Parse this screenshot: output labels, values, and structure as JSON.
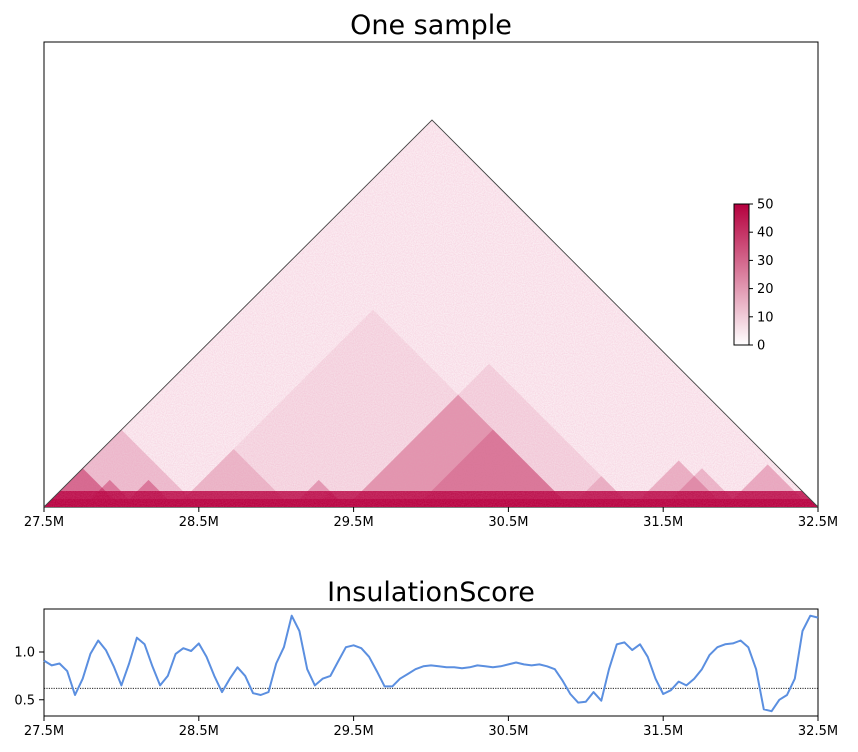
{
  "chart_data": [
    {
      "type": "heatmap",
      "title": "One sample",
      "x_tick_labels": [
        "27.5M",
        "28.5M",
        "29.5M",
        "30.5M",
        "31.5M",
        "32.5M"
      ],
      "x_ticks": [
        27.5,
        28.5,
        29.5,
        30.5,
        31.5,
        32.5
      ],
      "xlim": [
        27.5,
        32.5
      ],
      "colorbar": {
        "range": [
          0,
          50
        ],
        "ticks": [
          0,
          10,
          20,
          30,
          40,
          50
        ],
        "tick_labels": [
          "0",
          "10",
          "20",
          "30",
          "40",
          "50"
        ],
        "color_low": "#ffffff",
        "color_high": "#b5003e"
      },
      "tads": [
        {
          "start": 27.5,
          "end": 28.0,
          "intensity": 0.85
        },
        {
          "start": 27.75,
          "end": 28.1,
          "intensity": 0.7
        },
        {
          "start": 28.0,
          "end": 28.35,
          "intensity": 0.7
        },
        {
          "start": 27.5,
          "end": 28.5,
          "intensity": 0.35
        },
        {
          "start": 28.35,
          "end": 29.1,
          "intensity": 0.3
        },
        {
          "start": 29.1,
          "end": 29.45,
          "intensity": 0.55
        },
        {
          "start": 29.25,
          "end": 29.45,
          "intensity": 0.5
        },
        {
          "start": 29.45,
          "end": 30.9,
          "intensity": 0.45
        },
        {
          "start": 29.9,
          "end": 30.9,
          "intensity": 0.4
        },
        {
          "start": 30.9,
          "end": 31.3,
          "intensity": 0.3
        },
        {
          "start": 31.3,
          "end": 31.9,
          "intensity": 0.45
        },
        {
          "start": 31.5,
          "end": 32.0,
          "intensity": 0.4
        },
        {
          "start": 31.9,
          "end": 32.45,
          "intensity": 0.5
        },
        {
          "start": 29.45,
          "end": 31.3,
          "intensity": 0.18
        },
        {
          "start": 28.35,
          "end": 30.9,
          "intensity": 0.12
        }
      ]
    },
    {
      "type": "line",
      "title": "InsulationScore",
      "x_tick_labels": [
        "27.5M",
        "28.5M",
        "29.5M",
        "30.5M",
        "31.5M",
        "32.5M"
      ],
      "x_ticks": [
        27.5,
        28.5,
        29.5,
        30.5,
        31.5,
        32.5
      ],
      "y_ticks": [
        0.5,
        1.0
      ],
      "y_tick_labels": [
        "0.5",
        "1.0"
      ],
      "xlim": [
        27.5,
        32.5
      ],
      "ylim": [
        0.33,
        1.45
      ],
      "line_color": "#5b8fe0",
      "threshold": 0.62,
      "x": [
        27.5,
        27.55,
        27.6,
        27.65,
        27.7,
        27.75,
        27.8,
        27.85,
        27.9,
        27.95,
        28.0,
        28.05,
        28.1,
        28.15,
        28.2,
        28.25,
        28.3,
        28.35,
        28.4,
        28.45,
        28.5,
        28.55,
        28.6,
        28.65,
        28.7,
        28.75,
        28.8,
        28.85,
        28.9,
        28.95,
        29.0,
        29.05,
        29.1,
        29.15,
        29.2,
        29.25,
        29.3,
        29.35,
        29.4,
        29.45,
        29.5,
        29.55,
        29.6,
        29.65,
        29.7,
        29.75,
        29.8,
        29.85,
        29.9,
        29.95,
        30.0,
        30.05,
        30.1,
        30.15,
        30.2,
        30.25,
        30.3,
        30.35,
        30.4,
        30.45,
        30.5,
        30.55,
        30.6,
        30.65,
        30.7,
        30.75,
        30.8,
        30.85,
        30.9,
        30.95,
        31.0,
        31.05,
        31.1,
        31.15,
        31.2,
        31.25,
        31.3,
        31.35,
        31.4,
        31.45,
        31.5,
        31.55,
        31.6,
        31.65,
        31.7,
        31.75,
        31.8,
        31.85,
        31.9,
        31.95,
        32.0,
        32.05,
        32.1,
        32.15,
        32.2,
        32.25,
        32.3,
        32.35,
        32.4,
        32.45,
        32.5
      ],
      "y": [
        0.91,
        0.86,
        0.88,
        0.8,
        0.55,
        0.72,
        0.98,
        1.12,
        1.02,
        0.85,
        0.65,
        0.88,
        1.15,
        1.08,
        0.85,
        0.65,
        0.75,
        0.98,
        1.04,
        1.01,
        1.09,
        0.95,
        0.75,
        0.58,
        0.72,
        0.84,
        0.75,
        0.57,
        0.55,
        0.58,
        0.88,
        1.05,
        1.38,
        1.22,
        0.82,
        0.65,
        0.72,
        0.75,
        0.9,
        1.05,
        1.07,
        1.04,
        0.95,
        0.8,
        0.64,
        0.64,
        0.72,
        0.77,
        0.82,
        0.85,
        0.86,
        0.85,
        0.84,
        0.84,
        0.83,
        0.84,
        0.86,
        0.85,
        0.84,
        0.85,
        0.87,
        0.89,
        0.87,
        0.86,
        0.87,
        0.85,
        0.82,
        0.7,
        0.56,
        0.47,
        0.48,
        0.58,
        0.49,
        0.82,
        1.08,
        1.1,
        1.02,
        1.08,
        0.95,
        0.72,
        0.56,
        0.6,
        0.69,
        0.65,
        0.72,
        0.82,
        0.97,
        1.05,
        1.08,
        1.09,
        1.12,
        1.05,
        0.82,
        0.4,
        0.38,
        0.5,
        0.55,
        0.72,
        1.22,
        1.38,
        1.36
      ]
    }
  ]
}
